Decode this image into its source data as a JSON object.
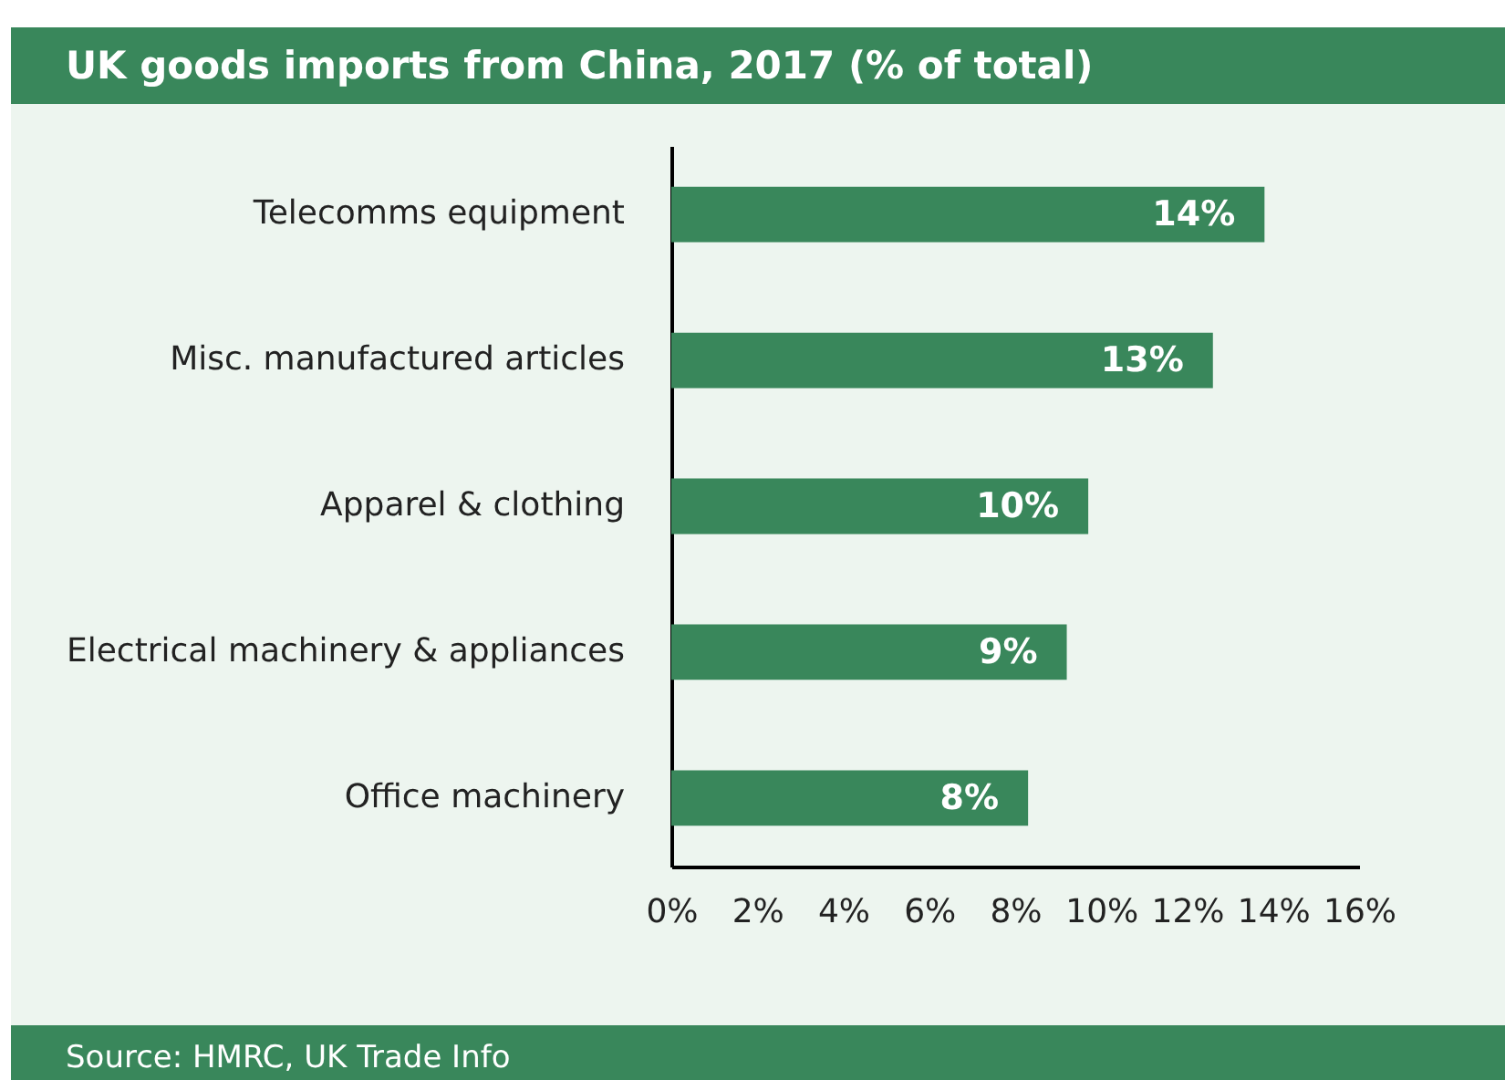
{
  "chart_data": {
    "type": "bar",
    "orientation": "horizontal",
    "title": "UK goods imports from China, 2017 (% of total)",
    "categories": [
      "Telecomms equipment",
      "Misc. manufactured articles",
      "Apparel & clothing",
      "Electrical machinery & appliances",
      "Office machinery"
    ],
    "values": [
      13.8,
      12.6,
      9.7,
      9.2,
      8.3
    ],
    "value_labels": [
      "14%",
      "13%",
      "10%",
      "9%",
      "8%"
    ],
    "color": "#39875b",
    "xlim": [
      0,
      16
    ],
    "xticks": [
      {
        "value": 0,
        "label": "0%"
      },
      {
        "value": 2,
        "label": "2%"
      },
      {
        "value": 4,
        "label": "4%"
      },
      {
        "value": 6,
        "label": "6%"
      },
      {
        "value": 8,
        "label": "8%"
      },
      {
        "value": 10,
        "label": "10%"
      },
      {
        "value": 12,
        "label": "12%"
      },
      {
        "value": 14,
        "label": "14%"
      },
      {
        "value": 16,
        "label": "16%"
      }
    ],
    "grid": false,
    "annotations": [
      "Source: HMRC, UK Trade Info"
    ]
  }
}
